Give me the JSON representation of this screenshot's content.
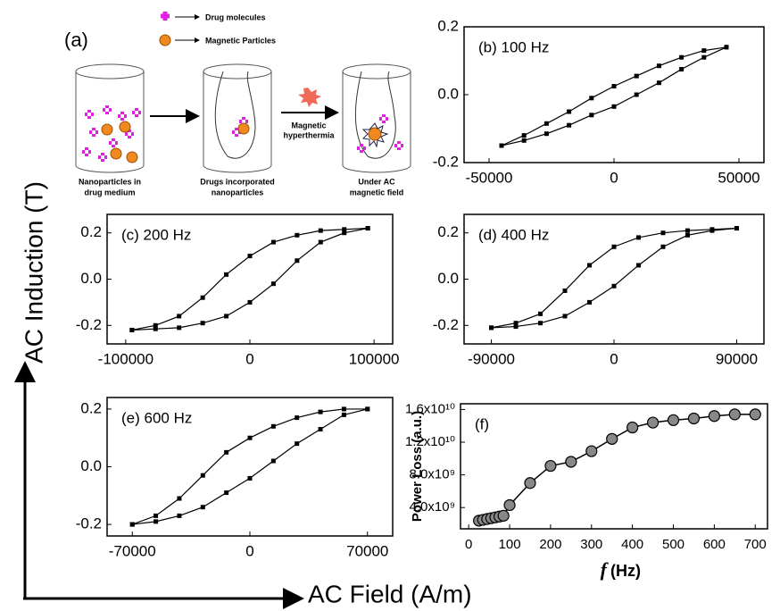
{
  "schematic": {
    "label": "(a)",
    "legend": [
      "Drug molecules",
      "Magnetic Particles"
    ],
    "process": [
      "Magnetic",
      "hyperthermia"
    ],
    "captions": [
      [
        "Nanoparticles in",
        "drug medium"
      ],
      [
        "Drugs incorporated",
        "nanoparticles"
      ],
      [
        "Under AC",
        "magnetic field"
      ]
    ]
  },
  "axis_titles": {
    "y": "AC Induction (T)",
    "x": "AC Field (A/m)"
  },
  "chart_data": [
    {
      "type": "line",
      "annotation": "(b) 100 Hz",
      "marker": "square",
      "x": [
        -45000,
        -36000,
        -27000,
        -18000,
        -9000,
        0,
        9000,
        18000,
        27000,
        36000,
        45000
      ],
      "series": [
        {
          "color": "#000000",
          "values": [
            -0.15,
            -0.12,
            -0.085,
            -0.05,
            -0.01,
            0.025,
            0.055,
            0.085,
            0.11,
            0.13,
            0.14
          ]
        },
        {
          "color": "#000000",
          "values": [
            -0.15,
            -0.135,
            -0.115,
            -0.09,
            -0.06,
            -0.035,
            0.0,
            0.035,
            0.075,
            0.11,
            0.14
          ]
        }
      ],
      "xlim": [
        -60000,
        60000
      ],
      "xticks": [
        -50000,
        0,
        50000
      ],
      "ylim": [
        -0.2,
        0.2
      ],
      "yticks": [
        -0.2,
        {
          "value": 0,
          "label": "0.0"
        },
        0.2
      ]
    },
    {
      "type": "line",
      "annotation": "(c) 200 Hz",
      "marker": "square",
      "x": [
        -95000,
        -76000,
        -57000,
        -38000,
        -19000,
        0,
        19000,
        38000,
        57000,
        76000,
        95000
      ],
      "series": [
        {
          "color": "#000000",
          "values": [
            -0.22,
            -0.2,
            -0.16,
            -0.08,
            0.02,
            0.1,
            0.16,
            0.19,
            0.21,
            0.215,
            0.22
          ]
        },
        {
          "color": "#000000",
          "values": [
            -0.22,
            -0.215,
            -0.21,
            -0.19,
            -0.16,
            -0.1,
            -0.02,
            0.08,
            0.16,
            0.2,
            0.22
          ]
        }
      ],
      "xlim": [
        -115000,
        115000
      ],
      "xticks": [
        -100000,
        0,
        100000
      ],
      "ylim": [
        -0.28,
        0.28
      ],
      "yticks": [
        -0.2,
        {
          "value": 0,
          "label": "0.0"
        },
        0.2
      ]
    },
    {
      "type": "line",
      "annotation": "(d) 400 Hz",
      "marker": "square",
      "x": [
        -90000,
        -72000,
        -54000,
        -36000,
        -18000,
        0,
        18000,
        36000,
        54000,
        72000,
        90000
      ],
      "series": [
        {
          "color": "#000000",
          "values": [
            -0.21,
            -0.19,
            -0.15,
            -0.05,
            0.06,
            0.14,
            0.18,
            0.2,
            0.21,
            0.215,
            0.22
          ]
        },
        {
          "color": "#000000",
          "values": [
            -0.21,
            -0.205,
            -0.19,
            -0.16,
            -0.1,
            -0.03,
            0.06,
            0.14,
            0.19,
            0.21,
            0.22
          ]
        }
      ],
      "xlim": [
        -110000,
        110000
      ],
      "xticks": [
        -90000,
        0,
        90000
      ],
      "ylim": [
        -0.28,
        0.28
      ],
      "yticks": [
        -0.2,
        {
          "value": 0,
          "label": "0.0"
        },
        0.2
      ]
    },
    {
      "type": "line",
      "annotation": "(e) 600 Hz",
      "marker": "square",
      "x": [
        -70000,
        -56000,
        -42000,
        -28000,
        -14000,
        0,
        14000,
        28000,
        42000,
        56000,
        70000
      ],
      "series": [
        {
          "color": "#000000",
          "values": [
            -0.2,
            -0.17,
            -0.11,
            -0.03,
            0.05,
            0.1,
            0.14,
            0.17,
            0.19,
            0.2,
            0.2
          ]
        },
        {
          "color": "#000000",
          "values": [
            -0.2,
            -0.19,
            -0.17,
            -0.14,
            -0.09,
            -0.04,
            0.02,
            0.08,
            0.13,
            0.18,
            0.2
          ]
        }
      ],
      "xlim": [
        -85000,
        85000
      ],
      "xticks": [
        -70000,
        0,
        70000
      ],
      "ylim": [
        -0.24,
        0.24
      ],
      "yticks": [
        -0.2,
        {
          "value": 0,
          "label": "0.0"
        },
        0.2
      ]
    },
    {
      "type": "line",
      "annotation": "(f)",
      "marker": "circle",
      "ylabel": "Power Loss (a.u.)",
      "xlabel_symbol": "f",
      "xlabel_unit": "(Hz)",
      "x": [
        25,
        35,
        45,
        55,
        65,
        75,
        85,
        100,
        150,
        200,
        250,
        300,
        350,
        400,
        450,
        500,
        550,
        600,
        650,
        700
      ],
      "series": [
        {
          "color": "#888888",
          "values": [
            2400000000,
            2500000000,
            2600000000,
            2700000000,
            2800000000,
            2900000000,
            3000000000,
            4300000000,
            7000000000,
            9100000000,
            9600000000,
            10900000000,
            12400000000,
            13800000000,
            14400000000,
            14700000000,
            14900000000,
            15200000000,
            15400000000,
            15400000000
          ]
        }
      ],
      "xlim": [
        -20,
        730
      ],
      "xticks": [
        0,
        100,
        200,
        300,
        400,
        500,
        600,
        700
      ],
      "ylim": [
        1400000000,
        16700000000
      ],
      "yticks": [
        {
          "value": 4000000000,
          "label": "4.0x10⁹"
        },
        {
          "value": 8000000000,
          "label": "8.0x10⁹"
        },
        {
          "value": 12000000000,
          "label": "1.2x10¹⁰"
        },
        {
          "value": 16000000000,
          "label": "1.6x10¹⁰"
        }
      ]
    }
  ]
}
